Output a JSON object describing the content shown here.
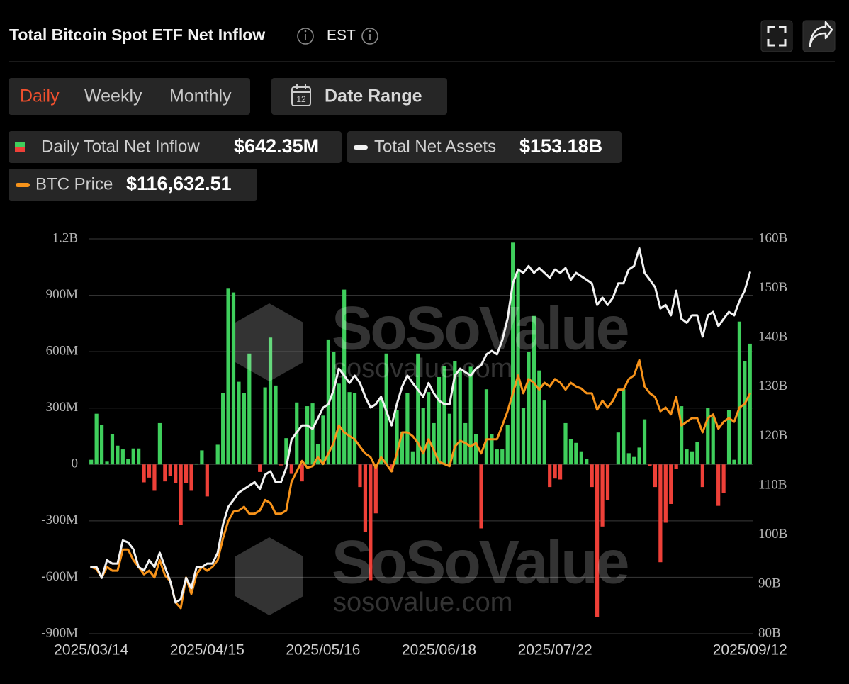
{
  "chart_data": {
    "type": "bar",
    "title": "Total Bitcoin Spot ETF Net Inflow",
    "timezone": "EST",
    "periods": [
      "Daily",
      "Weekly",
      "Monthly"
    ],
    "date_range": "Date Range",
    "date_icon": "12",
    "watermark": [
      "SoSoValue",
      "sosovalue.com"
    ],
    "grid": true,
    "categories": [
      "2025/03/14",
      null,
      null,
      null,
      null,
      null,
      null,
      null,
      null,
      null,
      null,
      null,
      null,
      null,
      null,
      null,
      null,
      null,
      null,
      null,
      null,
      null,
      "2025/04/15",
      null,
      null,
      null,
      null,
      null,
      null,
      null,
      null,
      null,
      null,
      null,
      null,
      null,
      null,
      null,
      null,
      null,
      null,
      null,
      null,
      null,
      "2025/05/16",
      null,
      null,
      null,
      null,
      null,
      null,
      null,
      null,
      null,
      null,
      null,
      null,
      null,
      null,
      null,
      null,
      null,
      null,
      null,
      null,
      null,
      "2025/06/18",
      null,
      null,
      null,
      null,
      null,
      null,
      null,
      null,
      null,
      null,
      null,
      null,
      null,
      null,
      null,
      null,
      null,
      null,
      null,
      null,
      null,
      "2025/07/22",
      null,
      null,
      null,
      null,
      null,
      null,
      null,
      null,
      null,
      null,
      null,
      null,
      null,
      null,
      null,
      null,
      null,
      null,
      null,
      null,
      null,
      null,
      null,
      null,
      null,
      null,
      null,
      null,
      null,
      null,
      null,
      null,
      null,
      null,
      null,
      null,
      "2025/09/12"
    ],
    "ylim": [
      -900000000.0,
      1200000000.0
    ],
    "yticks": [
      {
        "value": -900000000.0,
        "label": "-900M"
      },
      {
        "value": -600000000.0,
        "label": "-600M"
      },
      {
        "value": -300000000.0,
        "label": "-300M"
      },
      0,
      {
        "value": 300000000.0,
        "label": "300M"
      },
      {
        "value": 600000000.0,
        "label": "600M"
      },
      {
        "value": 900000000.0,
        "label": "900M"
      },
      {
        "value": 1200000000.0,
        "label": "1.2B"
      }
    ],
    "y2lim": [
      80000000000.0,
      160000000000.0
    ],
    "y2ticks": [
      {
        "value": 80000000000.0,
        "label": "80B"
      },
      {
        "value": 90000000000.0,
        "label": "90B"
      },
      {
        "value": 100000000000.0,
        "label": "100B"
      },
      {
        "value": 110000000000.0,
        "label": "110B"
      },
      {
        "value": 120000000000.0,
        "label": "120B"
      },
      {
        "value": 130000000000.0,
        "label": "130B"
      },
      {
        "value": 140000000000.0,
        "label": "140B"
      },
      {
        "value": 150000000000.0,
        "label": "150B"
      },
      {
        "value": 160000000000.0,
        "label": "160B"
      }
    ],
    "series": [
      {
        "name": "Daily Total Net Inflow",
        "type": "bar",
        "color": "#3fcf5c",
        "negative_color": "#ee4038",
        "legend_value": "$642.35M",
        "values": [
          25000000.0,
          270000000.0,
          210000000.0,
          15000000.0,
          160000000.0,
          100000000.0,
          80000000.0,
          30000000.0,
          85000000.0,
          85000000.0,
          -95000000.0,
          -70000000.0,
          -140000000.0,
          220000000.0,
          -90000000.0,
          -60000000.0,
          -100000000.0,
          -320000000.0,
          -100000000.0,
          -140000000.0,
          5000000.0,
          75000000.0,
          -170000000.0,
          0,
          105000000.0,
          380000000.0,
          935000000.0,
          915000000.0,
          440000000.0,
          380000000.0,
          590000000.0,
          0,
          -40000000.0,
          410000000.0,
          675000000.0,
          420000000.0,
          -5000000.0,
          140000000.0,
          -50000000.0,
          330000000.0,
          -90000000.0,
          310000000.0,
          325000000.0,
          110000000.0,
          260000000.0,
          665000000.0,
          600000000.0,
          430000000.0,
          930000000.0,
          385000000.0,
          380000000.0,
          -120000000.0,
          -360000000.0,
          -615000000.0,
          -260000000.0,
          350000000.0,
          590000000.0,
          -40000000.0,
          290000000.0,
          175000000.0,
          380000000.0,
          70000000.0,
          590000000.0,
          300000000.0,
          385000000.0,
          220000000.0,
          465000000.0,
          525000000.0,
          270000000.0,
          550000000.0,
          500000000.0,
          220000000.0,
          520000000.0,
          160000000.0,
          -340000000.0,
          400000000.0,
          160000000.0,
          80000000.0,
          80000000.0,
          210000000.0,
          1180000000.0,
          1030000000.0,
          300000000.0,
          600000000.0,
          790000000.0,
          500000000.0,
          340000000.0,
          -120000000.0,
          -75000000.0,
          -80000000.0,
          220000000.0,
          135000000.0,
          115000000.0,
          70000000.0,
          30000000.0,
          -120000000.0,
          -810000000.0,
          -330000000.0,
          -190000000.0,
          0,
          170000000.0,
          400000000.0,
          60000000.0,
          40000000.0,
          90000000.0,
          240000000.0,
          -10000000.0,
          -120000000.0,
          -520000000.0,
          -310000000.0,
          -210000000.0,
          -25000000.0,
          310000000.0,
          80000000.0,
          70000000.0,
          120000000.0,
          -120000000.0,
          300000000.0,
          250000000.0,
          -220000000.0,
          -150000000.0,
          290000000.0,
          25000000.0,
          760000000.0,
          550000000.0,
          642350000.0
        ]
      },
      {
        "name": "Total Net Assets",
        "type": "line",
        "axis": "y2",
        "color": "#f2f2f2",
        "legend_value": "$153.18B",
        "values": [
          93500000000.0,
          93500000000.0,
          91300000000.0,
          94900000000.0,
          94200000000.0,
          94200000000.0,
          98900000000.0,
          98500000000.0,
          97100000000.0,
          93500000000.0,
          92800000000.0,
          94900000000.0,
          93500000000.0,
          96400000000.0,
          93500000000.0,
          90600000000.0,
          86300000000.0,
          87000000000.0,
          91300000000.0,
          89200000000.0,
          93500000000.0,
          93500000000.0,
          94200000000.0,
          94200000000.0,
          96400000000.0,
          102100000000.0,
          105700000000.0,
          107100000000.0,
          108600000000.0,
          109300000000.0,
          110000000000.0,
          110700000000.0,
          109300000000.0,
          112200000000.0,
          112900000000.0,
          110700000000.0,
          110700000000.0,
          113600000000.0,
          119300000000.0,
          120800000000.0,
          122200000000.0,
          122200000000.0,
          121500000000.0,
          123600000000.0,
          125800000000.0,
          126500000000.0,
          129400000000.0,
          133700000000.0,
          132300000000.0,
          130800000000.0,
          132300000000.0,
          130800000000.0,
          128000000000.0,
          125800000000.0,
          126500000000.0,
          128000000000.0,
          125100000000.0,
          122200000000.0,
          126500000000.0,
          130100000000.0,
          132300000000.0,
          130800000000.0,
          129400000000.0,
          128000000000.0,
          130800000000.0,
          128700000000.0,
          127200000000.0,
          126500000000.0,
          126500000000.0,
          132300000000.0,
          133700000000.0,
          133000000000.0,
          132300000000.0,
          133700000000.0,
          134400000000.0,
          136600000000.0,
          137300000000.0,
          136600000000.0,
          139500000000.0,
          143800000000.0,
          151000000000.0,
          153800000000.0,
          153100000000.0,
          154500000000.0,
          153100000000.0,
          154100000000.0,
          153100000000.0,
          152100000000.0,
          153800000000.0,
          153100000000.0,
          154100000000.0,
          151700000000.0,
          153100000000.0,
          152400000000.0,
          151700000000.0,
          151000000000.0,
          146600000000.0,
          148100000000.0,
          146600000000.0,
          148100000000.0,
          151000000000.0,
          151000000000.0,
          153800000000.0,
          154500000000.0,
          158100000000.0,
          153100000000.0,
          151700000000.0,
          150200000000.0,
          145900000000.0,
          146600000000.0,
          144500000000.0,
          149500000000.0,
          143800000000.0,
          143000000000.0,
          144500000000.0,
          144500000000.0,
          140200000000.0,
          144500000000.0,
          145200000000.0,
          142300000000.0,
          143800000000.0,
          145200000000.0,
          144500000000.0,
          147400000000.0,
          149500000000.0,
          153180000000.0
        ]
      },
      {
        "name": "BTC Price",
        "type": "line",
        "axis": "unlabeled",
        "color": "#f7931a",
        "legend_value": "$116,632.51",
        "values": [
          83800,
          83400,
          81800,
          83800,
          83100,
          83100,
          87100,
          87100,
          85100,
          83800,
          82400,
          83100,
          81800,
          85100,
          82200,
          81100,
          77100,
          76000,
          81800,
          78700,
          82400,
          83800,
          83100,
          83800,
          85100,
          89200,
          92500,
          94300,
          94500,
          95200,
          93900,
          93900,
          94500,
          96500,
          95900,
          93900,
          93900,
          94500,
          99900,
          101900,
          103900,
          102600,
          102900,
          104600,
          103300,
          105300,
          107300,
          110600,
          109300,
          108600,
          108000,
          106600,
          105300,
          104600,
          102600,
          104600,
          103300,
          101900,
          105300,
          109300,
          109300,
          108600,
          107300,
          105300,
          108000,
          106000,
          103700,
          103300,
          102900,
          106600,
          107700,
          107300,
          106600,
          107300,
          105300,
          108000,
          108000,
          108000,
          110600,
          113300,
          116700,
          120100,
          116700,
          119400,
          118700,
          117400,
          118700,
          118000,
          119400,
          118700,
          117400,
          118700,
          118000,
          117600,
          116700,
          116700,
          113600,
          115300,
          114000,
          115300,
          117400,
          117400,
          119400,
          120100,
          123000,
          118000,
          116700,
          116000,
          113300,
          114000,
          112700,
          116000,
          110600,
          111300,
          112000,
          112000,
          109300,
          112000,
          112700,
          110000,
          111300,
          112000,
          111300,
          114000,
          114700,
          116632.51
        ]
      }
    ]
  }
}
